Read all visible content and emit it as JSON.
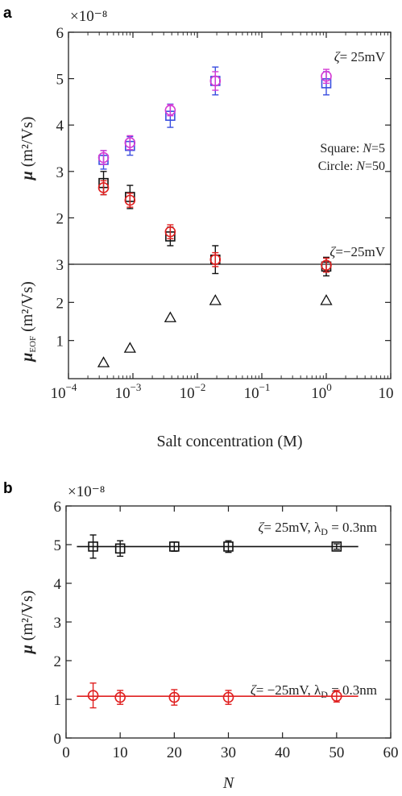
{
  "chart_data": [
    {
      "panel": "a",
      "type": "scatter",
      "x_scale": "log",
      "xlabel": "Salt concentration (M)",
      "xlim": [
        0.0001,
        10
      ],
      "x_ticks": [
        {
          "value": 0.0001,
          "base": "10",
          "exp": "−4"
        },
        {
          "value": 0.001,
          "base": "10",
          "exp": "−3"
        },
        {
          "value": 0.01,
          "base": "10",
          "exp": "−2"
        },
        {
          "value": 0.1,
          "base": "10",
          "exp": "−1"
        },
        {
          "value": 1,
          "base": "10",
          "exp": "0"
        },
        {
          "value": 10,
          "base": "10",
          "exp": ""
        }
      ],
      "top": {
        "ylabel_symbol": "μ",
        "ylabel_unit": " (m²/Vs)",
        "ylim": [
          1,
          6
        ],
        "y_ticks": [
          2,
          3,
          4,
          5,
          6
        ],
        "exponent_note": "×10⁻⁸",
        "annotations": {
          "zeta_pos": "= 25mV",
          "zeta_neg": "=−25mV",
          "square_label": "Square: ",
          "square_value": "=5",
          "circle_label": "Circle: ",
          "circle_value": "=50",
          "zeta_symbol": "ζ",
          "n_symbol": "N"
        },
        "series": [
          {
            "name": "Square: N=5",
            "zeta": "25mV",
            "marker": "square",
            "color": "#3b4fe0",
            "x": [
              0.00035,
              0.0009,
              0.0038,
              0.019,
              1.0
            ],
            "y": [
              3.25,
              3.55,
              4.2,
              4.95,
              4.9
            ],
            "err": [
              0.2,
              0.2,
              0.25,
              0.3,
              0.25
            ]
          },
          {
            "name": "Circle: N=50",
            "zeta": "25mV",
            "marker": "circle",
            "color": "#d53cd5",
            "x": [
              0.00035,
              0.0009,
              0.0038,
              0.019,
              1.0
            ],
            "y": [
              3.3,
              3.62,
              4.32,
              4.95,
              5.05
            ],
            "err": [
              0.15,
              0.15,
              0.12,
              0.2,
              0.15
            ]
          },
          {
            "name": "Square: N=5",
            "zeta": "-25mV",
            "marker": "square",
            "color": "#111111",
            "x": [
              0.00035,
              0.0009,
              0.0038,
              0.019,
              1.0
            ],
            "y": [
              2.75,
              2.45,
              1.6,
              1.1,
              0.95
            ],
            "err": [
              0.25,
              0.25,
              0.2,
              0.3,
              0.2
            ]
          },
          {
            "name": "Circle: N=50",
            "zeta": "-25mV",
            "marker": "circle",
            "color": "#e02020",
            "x": [
              0.00035,
              0.0009,
              0.0038,
              0.019,
              1.0
            ],
            "y": [
              2.65,
              2.38,
              1.7,
              1.1,
              0.98
            ],
            "err": [
              0.15,
              0.15,
              0.15,
              0.15,
              0.15
            ]
          }
        ]
      },
      "bottom": {
        "ylabel_symbol": "μ",
        "ylabel_sub": "EOF",
        "ylabel_unit": " (m²/Vs)",
        "ylim": [
          0,
          3
        ],
        "y_ticks": [
          1,
          2,
          3
        ],
        "series": [
          {
            "name": "EOF",
            "marker": "triangle",
            "color": "#111111",
            "x": [
              0.00035,
              0.0009,
              0.0038,
              0.019,
              1.0
            ],
            "y": [
              0.42,
              0.8,
              1.6,
              2.05,
              2.05
            ]
          }
        ]
      }
    },
    {
      "panel": "b",
      "type": "scatter",
      "xlabel": "N",
      "xlim": [
        0,
        60
      ],
      "x_ticks": [
        0,
        10,
        20,
        30,
        40,
        50,
        60
      ],
      "ylabel_symbol": "μ",
      "ylabel_unit": " (m²/Vs)",
      "ylim": [
        0,
        6
      ],
      "y_ticks": [
        0,
        1,
        2,
        3,
        4,
        5,
        6
      ],
      "exponent_note": "×10⁻⁸",
      "annotations": {
        "zeta_symbol": "ζ",
        "pos_text": "= 25mV, λ",
        "neg_text": "= −25mV, λ",
        "sub": "D",
        "tail": " = 0.3nm"
      },
      "series": [
        {
          "name": "ζ = 25mV",
          "marker": "square",
          "color": "#111111",
          "x": [
            5,
            10,
            20,
            30,
            50
          ],
          "y": [
            4.95,
            4.9,
            4.95,
            4.95,
            4.95
          ],
          "err": [
            0.3,
            0.2,
            0.12,
            0.15,
            0.07
          ],
          "fit": {
            "x": [
              2,
              54
            ],
            "y": [
              4.95,
              4.95
            ]
          }
        },
        {
          "name": "ζ = −25mV",
          "marker": "circle",
          "color": "#e02020",
          "x": [
            5,
            10,
            20,
            30,
            50
          ],
          "y": [
            1.1,
            1.05,
            1.05,
            1.05,
            1.08
          ],
          "err": [
            0.32,
            0.18,
            0.2,
            0.18,
            0.15
          ],
          "fit": {
            "x": [
              2,
              54
            ],
            "y": [
              1.08,
              1.08
            ]
          }
        }
      ]
    }
  ],
  "panel_labels": [
    "a",
    "b"
  ]
}
